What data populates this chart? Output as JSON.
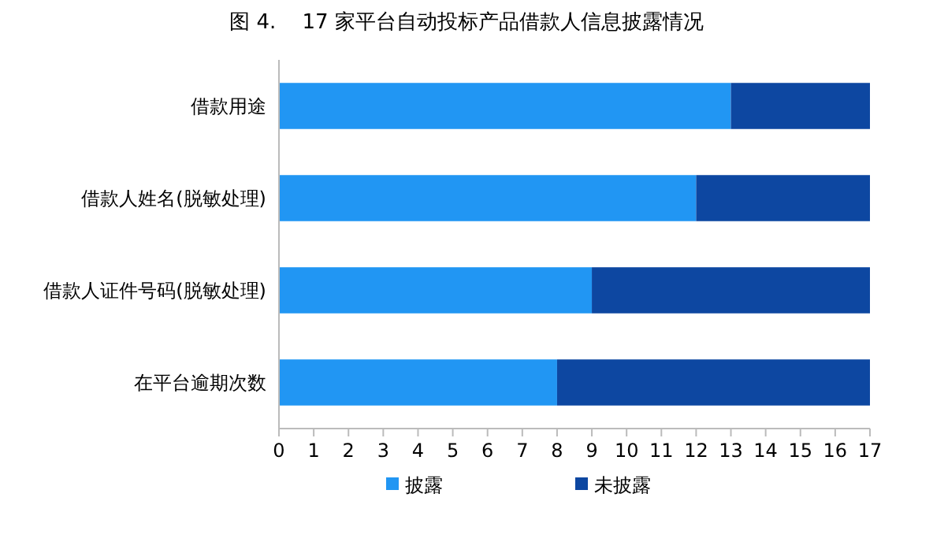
{
  "chart_data": {
    "type": "bar",
    "orientation": "horizontal",
    "stacked": true,
    "title": "图 4.    17 家平台自动投标产品借款人信息披露情况",
    "categories": [
      "借款用途",
      "借款人姓名(脱敏处理)",
      "借款人证件号码(脱敏处理)",
      "在平台逾期次数"
    ],
    "series": [
      {
        "name": "披露",
        "color": "#2196f3",
        "values": [
          13,
          12,
          9,
          8
        ]
      },
      {
        "name": "未披露",
        "color": "#0d47a1",
        "values": [
          4,
          5,
          8,
          9
        ]
      }
    ],
    "xlim": [
      0,
      17
    ],
    "xticks": [
      0,
      1,
      2,
      3,
      4,
      5,
      6,
      7,
      8,
      9,
      10,
      11,
      12,
      13,
      14,
      15,
      16,
      17
    ],
    "grid": false,
    "legend": "bottom"
  }
}
